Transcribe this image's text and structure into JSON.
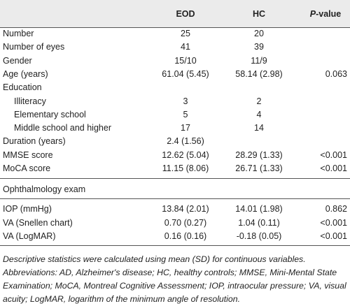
{
  "table": {
    "columns": [
      "EOD",
      "HC"
    ],
    "p_header": {
      "italic": "P",
      "rest": "-value"
    },
    "rows": [
      {
        "label": "Number",
        "eod": "25",
        "hc": "20"
      },
      {
        "label": "Number of eyes",
        "eod": "41",
        "hc": "39"
      },
      {
        "label": "Gender",
        "eod": "15/10",
        "hc": "11/9"
      },
      {
        "label": "Age (years)",
        "eod": "61.04 (5.45)",
        "hc": "58.14 (2.98)",
        "p": "0.063"
      },
      {
        "label": "Education",
        "children": [
          {
            "label": "Illiteracy",
            "eod": "3",
            "hc": "2"
          },
          {
            "label": "Elementary school",
            "eod": "5",
            "hc": "4"
          },
          {
            "label": "Middle school and higher",
            "eod": "17",
            "hc": "14"
          }
        ]
      },
      {
        "label": "Duration (years)",
        "eod": "2.4 (1.56)"
      },
      {
        "label": "MMSE score",
        "eod": "12.62 (5.04)",
        "hc": "28.29 (1.33)",
        "p": "<0.001"
      },
      {
        "label": "MoCA score",
        "eod": "11.15 (8.06)",
        "hc": "26.71 (1.33)",
        "p": "<0.001"
      }
    ],
    "section": "Ophthalmology exam",
    "section_rows": [
      {
        "label": "IOP (mmHg)",
        "eod": "13.84 (2.01)",
        "hc": "14.01 (1.98)",
        "p": "0.862"
      },
      {
        "label": "VA (Snellen chart)",
        "eod": "0.70 (0.27)",
        "hc": "1.04 (0.11)",
        "p": "<0.001"
      },
      {
        "label": "VA (LogMAR)",
        "eod": "0.16 (0.16)",
        "hc": "-0.18 (0.05)",
        "p": "<0.001"
      }
    ]
  },
  "footnote": "Descriptive statistics were calculated using mean (SD) for continuous variables. Abbreviations: AD, Alzheimer's disease; HC, healthy controls; MMSE, Mini-Mental State Examination; MoCA, Montreal Cognitive Assessment; IOP, intraocular pressure; VA, visual acuity; LogMAR, logarithm of the minimum angle of resolution."
}
